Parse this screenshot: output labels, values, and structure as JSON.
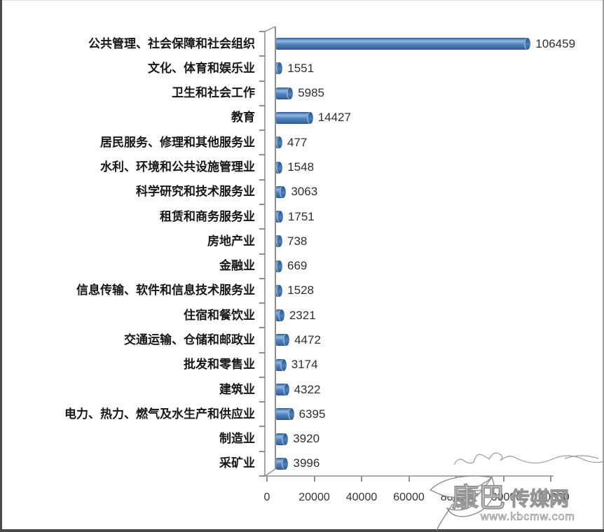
{
  "chart_data": {
    "type": "bar",
    "orientation": "horizontal",
    "title": "",
    "xlabel": "",
    "ylabel": "",
    "categories": [
      "公共管理、社会保障和社会组织",
      "文化、体育和娱乐业",
      "卫生和社会工作",
      "教育",
      "居民服务、修理和其他服务业",
      "水利、环境和公共设施管理业",
      "科学研究和技术服务业",
      "租赁和商务服务业",
      "房地产业",
      "金融业",
      "信息传输、软件和信息技术服务业",
      "住宿和餐饮业",
      "交通运输、仓储和邮政业",
      "批发和零售业",
      "建筑业",
      "电力、热力、燃气及水生产和供应业",
      "制造业",
      "采矿业"
    ],
    "values": [
      106459,
      1551,
      5985,
      14427,
      477,
      1548,
      3063,
      1751,
      738,
      669,
      1528,
      2321,
      4472,
      3174,
      4322,
      6395,
      3920,
      3996
    ],
    "data_labels": [
      "106459",
      "1551",
      "5985",
      "14427",
      "477",
      "1548",
      "3063",
      "1751",
      "738",
      "669",
      "1528",
      "2321",
      "4472",
      "3174",
      "4322",
      "6395",
      "3920",
      "3996"
    ],
    "x_ticks": [
      0,
      20000,
      40000,
      60000,
      80000,
      100000,
      120000
    ],
    "x_tick_labels": [
      "0",
      "20000",
      "40000",
      "60000",
      "80000",
      "100000",
      "120000"
    ],
    "xlim": [
      0,
      120000
    ],
    "grid": false,
    "legend": "none"
  },
  "watermark": {
    "logo": "leaf-logo",
    "site_name": "康巴传媒网",
    "site_name_part1": "康巴",
    "site_name_part2": "传媒网",
    "url": "www.kbcmw.com"
  },
  "colors": {
    "bar_mid": "#4f81bd",
    "bar_light": "#93b7e0",
    "bar_dark": "#3c6ca5",
    "bar_edge": "#2b5787",
    "axis": "#8f8f8f",
    "text": "#2e2e2e",
    "watermark_gray": "#949494"
  }
}
